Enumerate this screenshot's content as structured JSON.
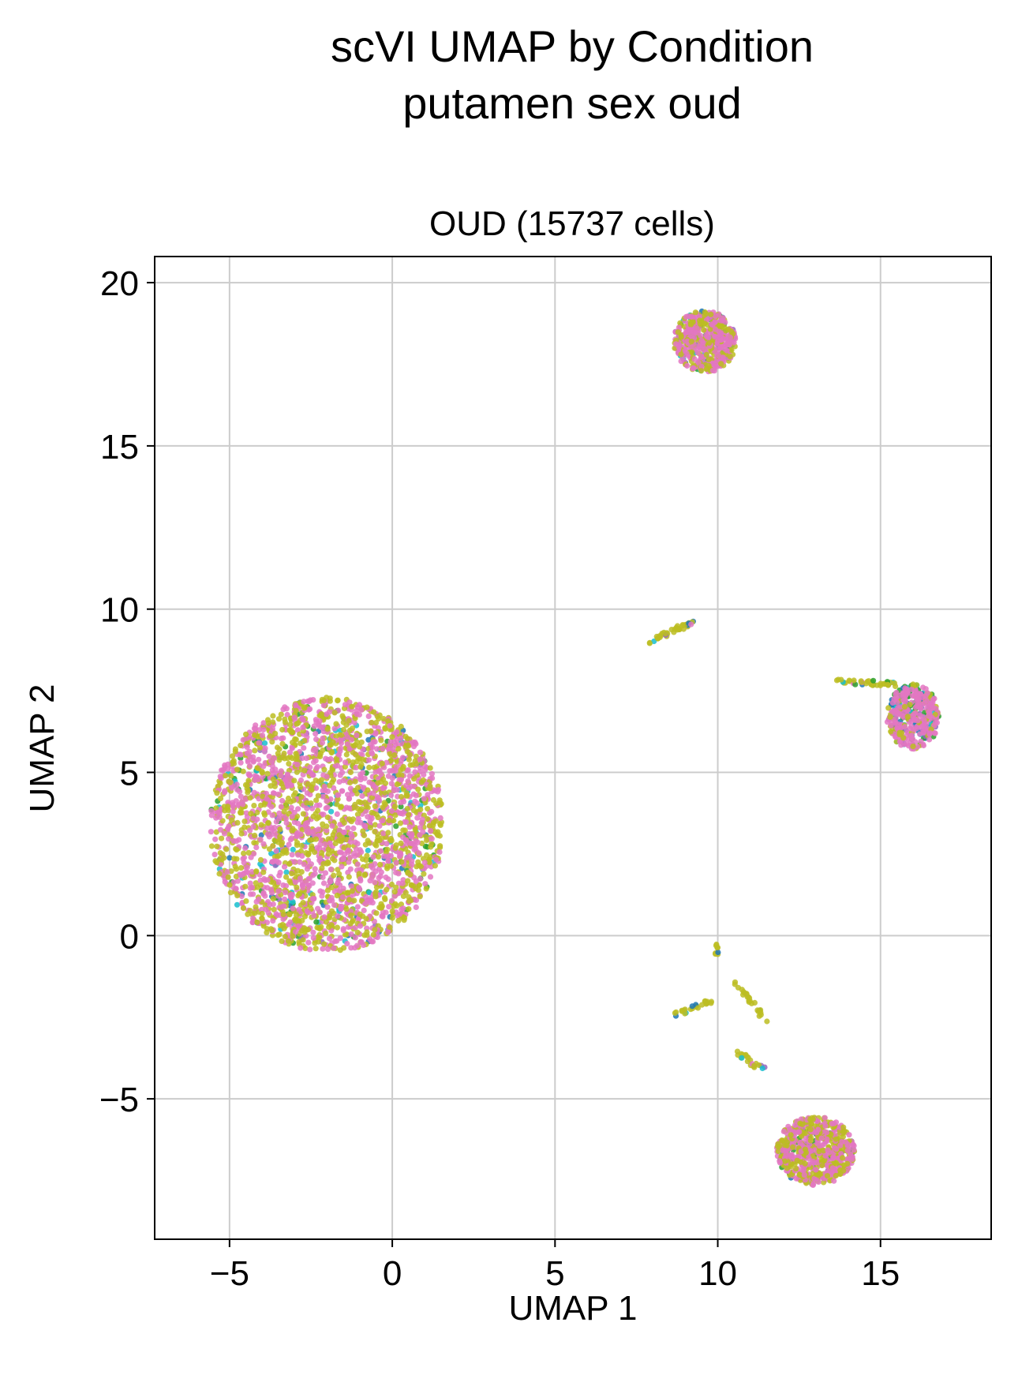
{
  "title_line1": "scVI UMAP by Condition",
  "title_line2": "putamen sex oud",
  "chart_data": {
    "type": "scatter",
    "title": "OUD (15737 cells)",
    "xlabel": "UMAP 1",
    "ylabel": "UMAP 2",
    "xlim": [
      -7.3,
      18.4
    ],
    "ylim": [
      -9.3,
      20.8
    ],
    "grid": true,
    "x_ticks": [
      -5,
      0,
      5,
      10,
      15
    ],
    "y_ticks": [
      -5,
      0,
      5,
      10,
      15,
      20
    ],
    "x_tick_labels": [
      "−5",
      "0",
      "5",
      "10",
      "15"
    ],
    "y_tick_labels": [
      "−5",
      "0",
      "5",
      "10",
      "15",
      "20"
    ],
    "palette": [
      "#e377c2",
      "#bcbd22",
      "#17becf",
      "#2ca02c",
      "#1f77b4",
      "#9467bd"
    ],
    "clusters": [
      {
        "label": "large-left",
        "cx": -2.0,
        "cy": 3.4,
        "rx": 3.6,
        "ry": 3.9,
        "n": 2600,
        "mix": [
          0.47,
          0.45,
          0.03,
          0.025,
          0.02,
          0.005
        ]
      },
      {
        "label": "top",
        "cx": 9.6,
        "cy": 18.2,
        "rx": 0.95,
        "ry": 0.95,
        "n": 500,
        "mix": [
          0.55,
          0.3,
          0.06,
          0.05,
          0.03,
          0.01
        ]
      },
      {
        "label": "right",
        "cx": 16.0,
        "cy": 6.7,
        "rx": 0.8,
        "ry": 1.0,
        "n": 380,
        "mix": [
          0.55,
          0.15,
          0.08,
          0.12,
          0.07,
          0.03
        ]
      },
      {
        "label": "bottom-right",
        "cx": 13.0,
        "cy": -6.6,
        "rx": 1.2,
        "ry": 1.05,
        "n": 650,
        "mix": [
          0.45,
          0.43,
          0.02,
          0.06,
          0.01,
          0.03
        ]
      }
    ],
    "streaks": [
      {
        "label": "mid-arc",
        "from": [
          7.9,
          9.0
        ],
        "to": [
          9.2,
          9.6
        ],
        "n": 40,
        "color": 1
      },
      {
        "label": "right-trail",
        "from": [
          13.7,
          7.8
        ],
        "to": [
          15.5,
          7.7
        ],
        "n": 40,
        "color": 1
      },
      {
        "label": "fragment-a",
        "from": [
          8.7,
          -2.4
        ],
        "to": [
          9.8,
          -2.0
        ],
        "n": 25,
        "color": 1
      },
      {
        "label": "fragment-b",
        "from": [
          10.5,
          -1.4
        ],
        "to": [
          11.5,
          -2.6
        ],
        "n": 25,
        "color": 1
      },
      {
        "label": "fragment-c",
        "from": [
          10.6,
          -3.6
        ],
        "to": [
          11.4,
          -4.1
        ],
        "n": 22,
        "color": 1
      },
      {
        "label": "fragment-d",
        "from": [
          10.0,
          -0.3
        ],
        "to": [
          10.0,
          -0.6
        ],
        "n": 8,
        "color": 1
      }
    ]
  }
}
